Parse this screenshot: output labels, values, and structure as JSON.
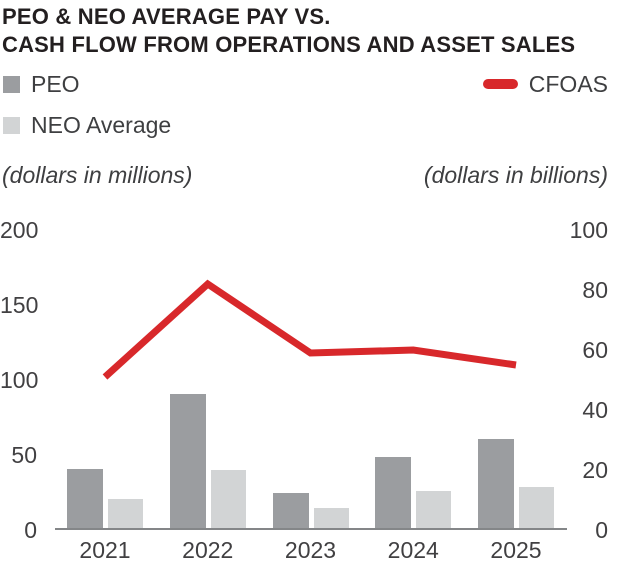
{
  "title": {
    "line1": "PEO & NEO AVERAGE PAY VS.",
    "line2": "CASH FLOW FROM OPERATIONS AND ASSET SALES"
  },
  "legend": {
    "peo": "PEO",
    "neo": "NEO Average",
    "cfoas": "CFOAS"
  },
  "colors": {
    "peo_bar": "#9b9da0",
    "neo_bar": "#d2d4d5",
    "cfoas_line": "#d8282b",
    "title_text": "#231f20",
    "axis_text": "#414042",
    "axis_line": "#848688"
  },
  "chart_data": {
    "type": "bar",
    "categories": [
      "2021",
      "2022",
      "2023",
      "2024",
      "2025"
    ],
    "series": [
      {
        "name": "PEO",
        "type": "bar",
        "axis": "left",
        "values": [
          41,
          91,
          25,
          49,
          61
        ]
      },
      {
        "name": "NEO Average",
        "type": "bar",
        "axis": "left",
        "values": [
          21,
          40,
          15,
          26,
          29
        ]
      },
      {
        "name": "CFOAS",
        "type": "line",
        "axis": "right",
        "values": [
          51,
          82,
          59,
          60,
          55
        ]
      }
    ],
    "title": "PEO & NEO AVERAGE PAY VS. CASH FLOW FROM OPERATIONS AND ASSET SALES",
    "left_axis": {
      "label": "(dollars in millions)",
      "ticks": [
        0,
        50,
        100,
        150,
        200
      ],
      "range": [
        0,
        200
      ]
    },
    "right_axis": {
      "label": "(dollars in billions)",
      "ticks": [
        0,
        20,
        40,
        60,
        80,
        100
      ],
      "range": [
        0,
        100
      ]
    },
    "grid": false,
    "legend_position": "top"
  }
}
